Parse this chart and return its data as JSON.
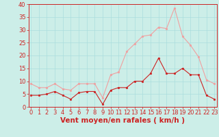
{
  "hours": [
    0,
    1,
    2,
    3,
    4,
    5,
    6,
    7,
    8,
    9,
    10,
    11,
    12,
    13,
    14,
    15,
    16,
    17,
    18,
    19,
    20,
    21,
    22,
    23
  ],
  "wind_avg": [
    4.5,
    4.5,
    5,
    6,
    4.5,
    3,
    5.5,
    6,
    6,
    1,
    6.5,
    7.5,
    7.5,
    10,
    10,
    13,
    19,
    13,
    13,
    15,
    12.5,
    12.5,
    4.5,
    3
  ],
  "wind_gust": [
    9,
    7.5,
    7.5,
    9,
    7,
    6.5,
    9,
    9,
    9,
    3.5,
    12.5,
    13.5,
    21.5,
    24.5,
    27.5,
    28,
    31,
    30.5,
    38.5,
    27.5,
    24,
    19.5,
    10.5,
    9
  ],
  "avg_color": "#cc2222",
  "gust_color": "#f0a0a0",
  "bg_color": "#cceee8",
  "grid_color": "#aadddd",
  "xlabel": "Vent moyen/en rafales ( km/h )",
  "ylim": [
    0,
    40
  ],
  "yticks": [
    0,
    5,
    10,
    15,
    20,
    25,
    30,
    35,
    40
  ],
  "xticks": [
    0,
    1,
    2,
    3,
    4,
    5,
    6,
    7,
    8,
    9,
    10,
    11,
    12,
    13,
    14,
    15,
    16,
    17,
    18,
    19,
    20,
    21,
    22,
    23
  ],
  "tick_fontsize": 6,
  "xlabel_fontsize": 7.5
}
